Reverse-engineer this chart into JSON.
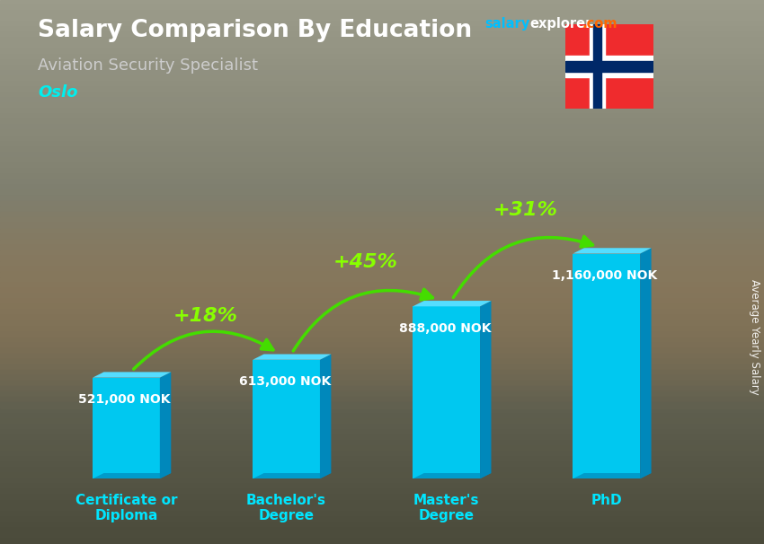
{
  "title": "Salary Comparison By Education",
  "subtitle": "Aviation Security Specialist",
  "city": "Oslo",
  "ylabel": "Average Yearly Salary",
  "categories": [
    "Certificate or\nDiploma",
    "Bachelor's\nDegree",
    "Master's\nDegree",
    "PhD"
  ],
  "values": [
    521000,
    613000,
    888000,
    1160000
  ],
  "value_labels": [
    "521,000 NOK",
    "613,000 NOK",
    "888,000 NOK",
    "1,160,000 NOK"
  ],
  "pct_changes": [
    "+18%",
    "+45%",
    "+31%"
  ],
  "bar_color_face": "#00C8F0",
  "bar_color_side": "#0088BB",
  "bar_color_top": "#55DDFF",
  "bg_top": "#8B8B7A",
  "bg_bottom": "#5A5A4A",
  "title_color": "#ffffff",
  "subtitle_color": "#cccccc",
  "city_color": "#00EFEF",
  "label_color": "#ffffff",
  "pct_color": "#88FF00",
  "arrow_color": "#44DD00",
  "figsize": [
    8.5,
    6.06
  ],
  "dpi": 100
}
